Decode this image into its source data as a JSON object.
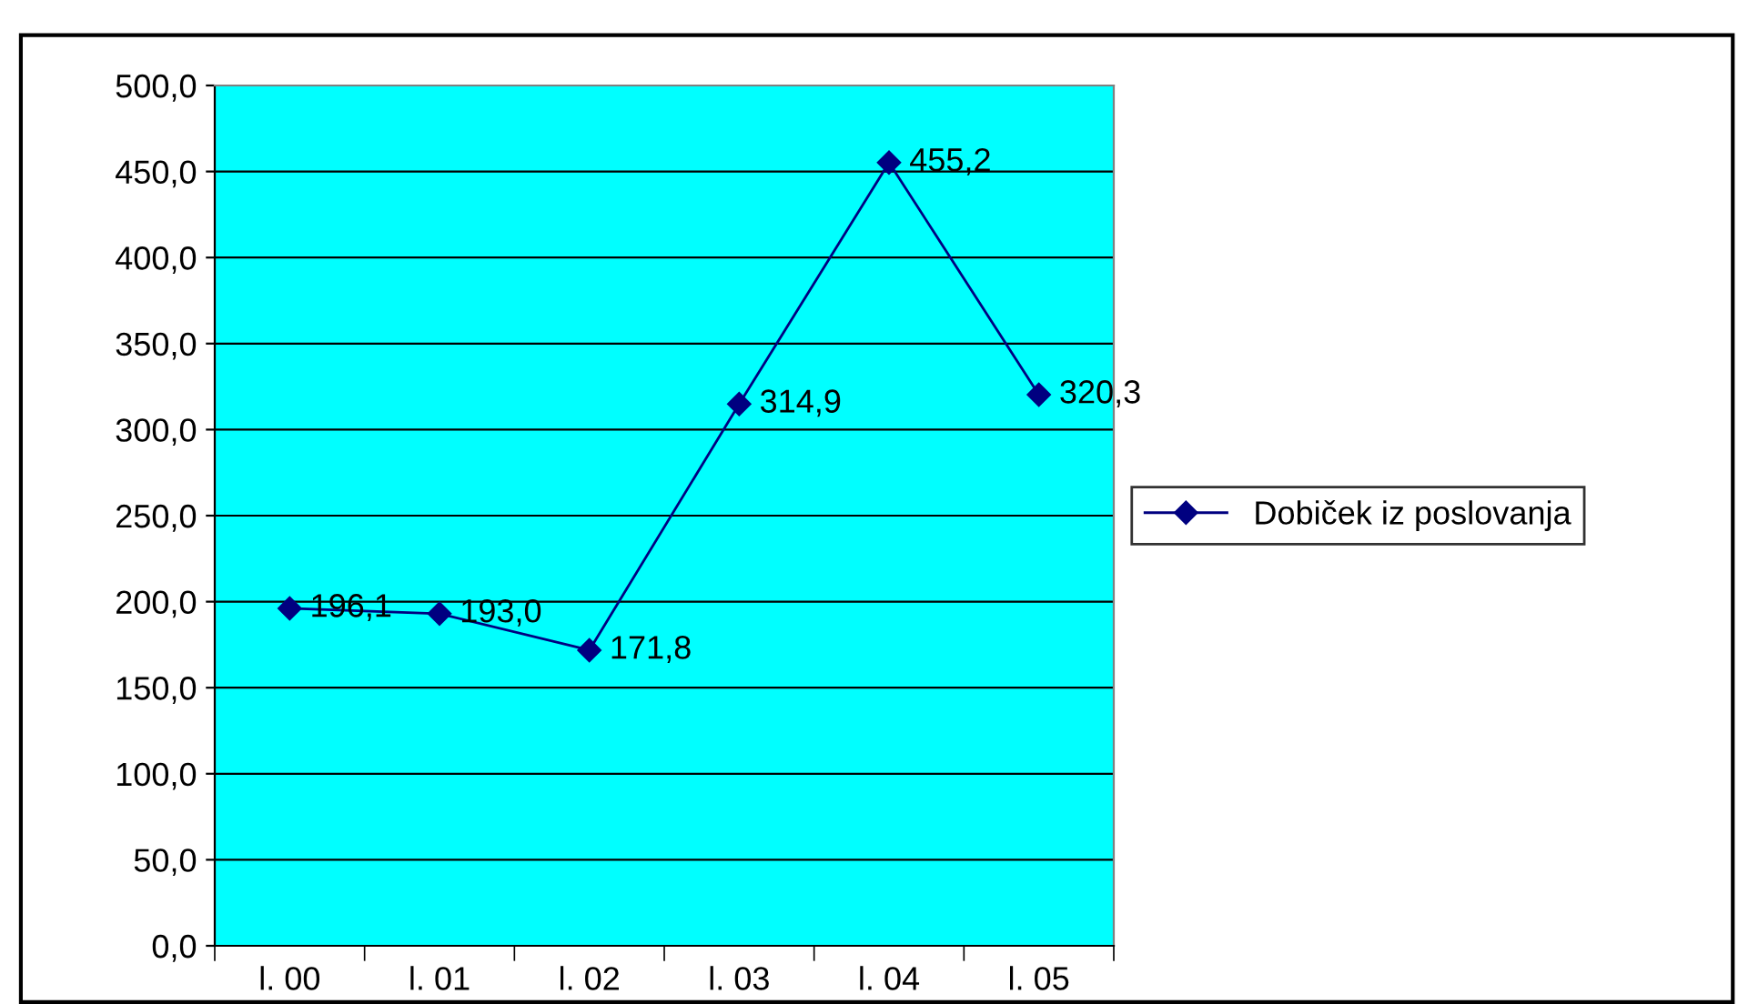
{
  "chart_data": {
    "type": "line",
    "categories": [
      "l. 00",
      "l. 01",
      "l. 02",
      "l. 03",
      "l. 04",
      "l. 05"
    ],
    "series": [
      {
        "name": "Dobiček iz poslovanja",
        "color": "#000080",
        "values": [
          196.1,
          193.0,
          171.8,
          314.9,
          455.2,
          320.3
        ],
        "value_labels": [
          "196,1",
          "193,0",
          "171,8",
          "314,9",
          "455,2",
          "320,3"
        ]
      }
    ],
    "ylim": [
      0,
      500
    ],
    "yticks": [
      {
        "value": 0,
        "label": "0,0"
      },
      {
        "value": 50,
        "label": "50,0"
      },
      {
        "value": 100,
        "label": "100,0"
      },
      {
        "value": 150,
        "label": "150,0"
      },
      {
        "value": 200,
        "label": "200,0"
      },
      {
        "value": 250,
        "label": "250,0"
      },
      {
        "value": 300,
        "label": "300,0"
      },
      {
        "value": 350,
        "label": "350,0"
      },
      {
        "value": 400,
        "label": "400,0"
      },
      {
        "value": 450,
        "label": "450,0"
      },
      {
        "value": 500,
        "label": "500,0"
      }
    ],
    "grid": "y",
    "legend": "right",
    "marker": "diamond",
    "line_style": "solid"
  }
}
